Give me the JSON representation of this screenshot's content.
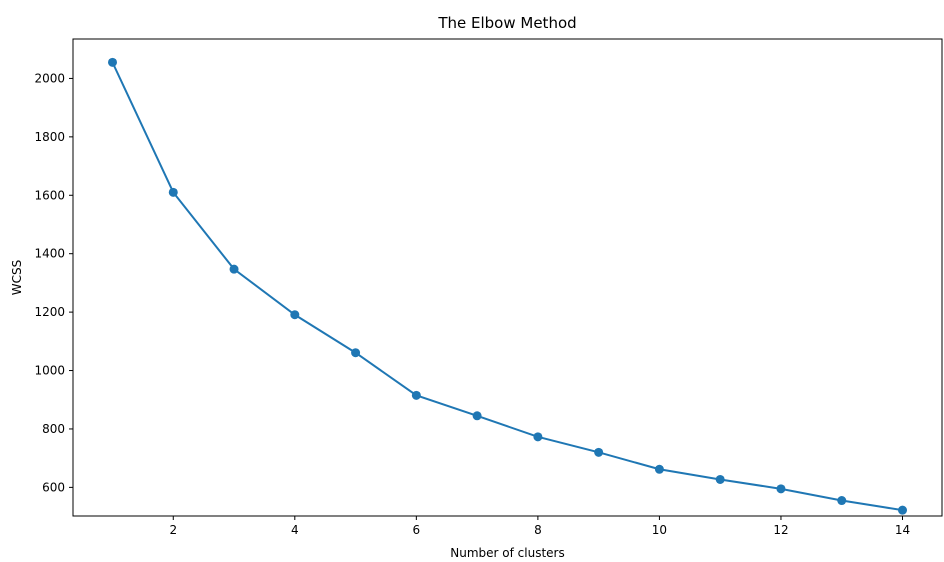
{
  "chart_data": {
    "type": "line",
    "title": "The Elbow Method",
    "xlabel": "Number of clusters",
    "ylabel": "WCSS",
    "x": [
      1,
      2,
      3,
      4,
      5,
      6,
      7,
      8,
      9,
      10,
      11,
      12,
      13,
      14
    ],
    "series": [
      {
        "values": [
          2055,
          1610,
          1347,
          1191,
          1061,
          915,
          845,
          773,
          720,
          662,
          627,
          595,
          555,
          522
        ],
        "color": "#1f77b4",
        "marker": "circle"
      }
    ],
    "xlim": [
      0.35,
      14.65
    ],
    "ylim": [
      502,
      2135
    ],
    "xticks": [
      2,
      4,
      6,
      8,
      10,
      12,
      14
    ],
    "yticks": [
      600,
      800,
      1000,
      1200,
      1400,
      1600,
      1800,
      2000
    ],
    "grid": false
  }
}
